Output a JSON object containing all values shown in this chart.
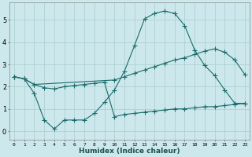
{
  "xlabel": "Humidex (Indice chaleur)",
  "bg_color": "#cce8ec",
  "grid_color": "#aacccc",
  "line_color": "#1a6b6b",
  "xlim": [
    -0.5,
    23.5
  ],
  "ylim": [
    -0.4,
    5.8
  ],
  "line1_x": [
    0,
    1,
    2,
    3,
    4,
    5,
    6,
    7,
    8,
    9,
    10,
    11,
    12,
    13,
    14,
    15,
    16,
    17,
    18,
    19,
    20,
    21,
    22,
    23
  ],
  "line1_y": [
    2.45,
    2.35,
    1.7,
    0.5,
    0.1,
    0.5,
    0.5,
    0.5,
    0.8,
    1.3,
    1.85,
    2.7,
    3.85,
    5.05,
    5.3,
    5.4,
    5.3,
    4.75,
    3.65,
    2.95,
    2.5,
    1.85,
    1.25,
    1.25
  ],
  "line2_x": [
    0,
    1,
    2,
    10,
    11,
    12,
    13,
    14,
    15,
    16,
    17,
    18,
    19,
    20,
    21,
    22,
    23
  ],
  "line2_y": [
    2.45,
    2.35,
    2.1,
    2.3,
    2.45,
    2.6,
    2.75,
    2.9,
    3.05,
    3.2,
    3.3,
    3.45,
    3.6,
    3.7,
    3.55,
    3.2,
    2.55
  ],
  "line3_x": [
    0,
    1,
    2,
    3,
    4,
    5,
    6,
    7,
    8,
    9,
    10,
    11,
    12,
    13,
    14,
    15,
    16,
    17,
    18,
    19,
    20,
    21,
    22,
    23
  ],
  "line3_y": [
    2.45,
    2.35,
    2.1,
    1.95,
    1.9,
    2.0,
    2.05,
    2.1,
    2.15,
    2.2,
    0.65,
    0.75,
    0.8,
    0.85,
    0.9,
    0.95,
    1.0,
    1.0,
    1.05,
    1.1,
    1.1,
    1.15,
    1.2,
    1.25
  ],
  "xtick_vals": [
    0,
    1,
    2,
    3,
    4,
    5,
    6,
    7,
    8,
    9,
    10,
    11,
    12,
    13,
    14,
    15,
    16,
    17,
    18,
    19,
    20,
    21,
    22,
    23
  ],
  "xtick_labels": [
    "0",
    "1",
    "2",
    "3",
    "4",
    "5",
    "6",
    "7",
    "8",
    "9",
    "10",
    "11",
    "12",
    "13",
    "14",
    "15",
    "16",
    "17",
    "18",
    "19",
    "20",
    "21",
    "22",
    "23"
  ],
  "ytick_vals": [
    0,
    1,
    2,
    3,
    4,
    5
  ],
  "ytick_labels": [
    "0",
    "1",
    "2",
    "3",
    "4",
    "5"
  ]
}
